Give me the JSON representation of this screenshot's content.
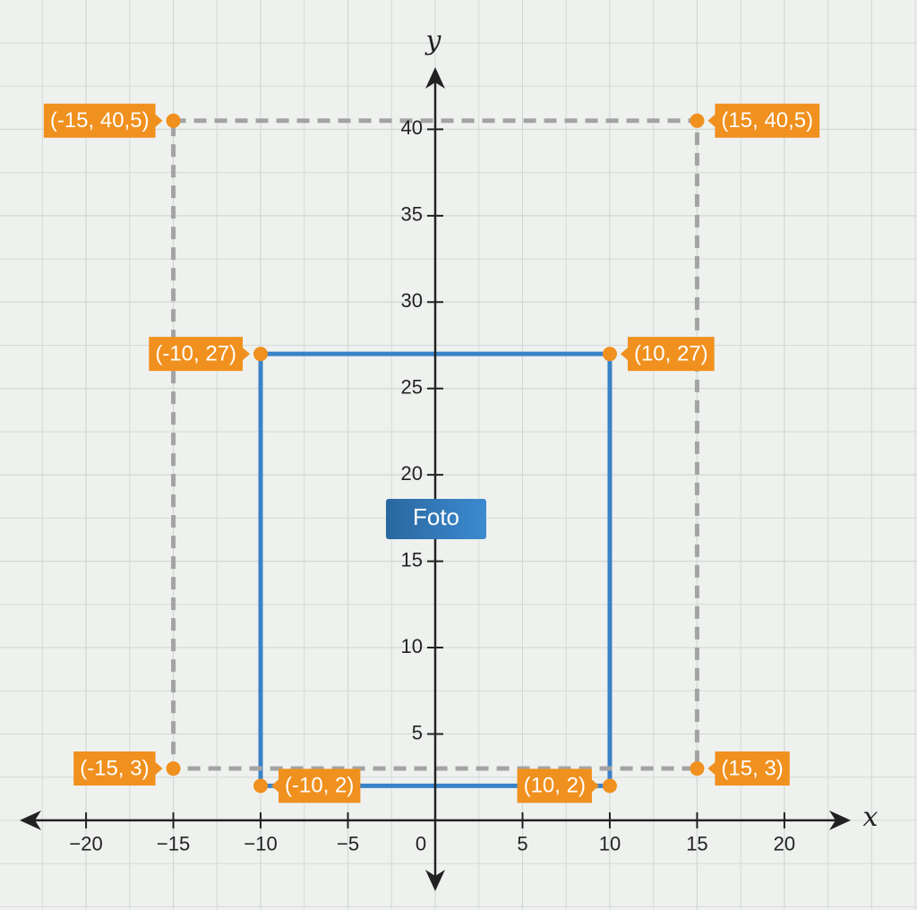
{
  "chart_data": {
    "type": "line",
    "x_label": "x",
    "y_label": "y",
    "xlim": [
      -23.8,
      23.8
    ],
    "ylim": [
      -4.1,
      43.6
    ],
    "xticks": [
      {
        "value": -20,
        "label": "−20"
      },
      {
        "value": -15,
        "label": "−15"
      },
      {
        "value": -10,
        "label": "−10"
      },
      {
        "value": -5,
        "label": "−5"
      },
      0,
      5,
      10,
      15,
      20
    ],
    "yticks": [
      5,
      10,
      15,
      20,
      25,
      30,
      35,
      40
    ],
    "grid": true,
    "series": [
      {
        "name": "Foto",
        "color": "#3a82c8",
        "style": "solid",
        "x": [
          -10,
          10,
          10,
          -10
        ],
        "values": [
          27,
          27,
          2,
          2
        ],
        "value_labels": [
          "(-10, 27)",
          "(10, 27)",
          "(10, 2)",
          "(-10, 2)"
        ]
      },
      {
        "color": "#a3a3a3",
        "style": "dashed",
        "x": [
          -15,
          15,
          15,
          -15
        ],
        "values": [
          40.5,
          40.5,
          3,
          3
        ],
        "value_labels": [
          "(-15, 40,5)",
          "(15, 40,5)",
          "(15, 3)",
          "(-15, 3)"
        ]
      }
    ],
    "point_color": "#f0901e"
  }
}
